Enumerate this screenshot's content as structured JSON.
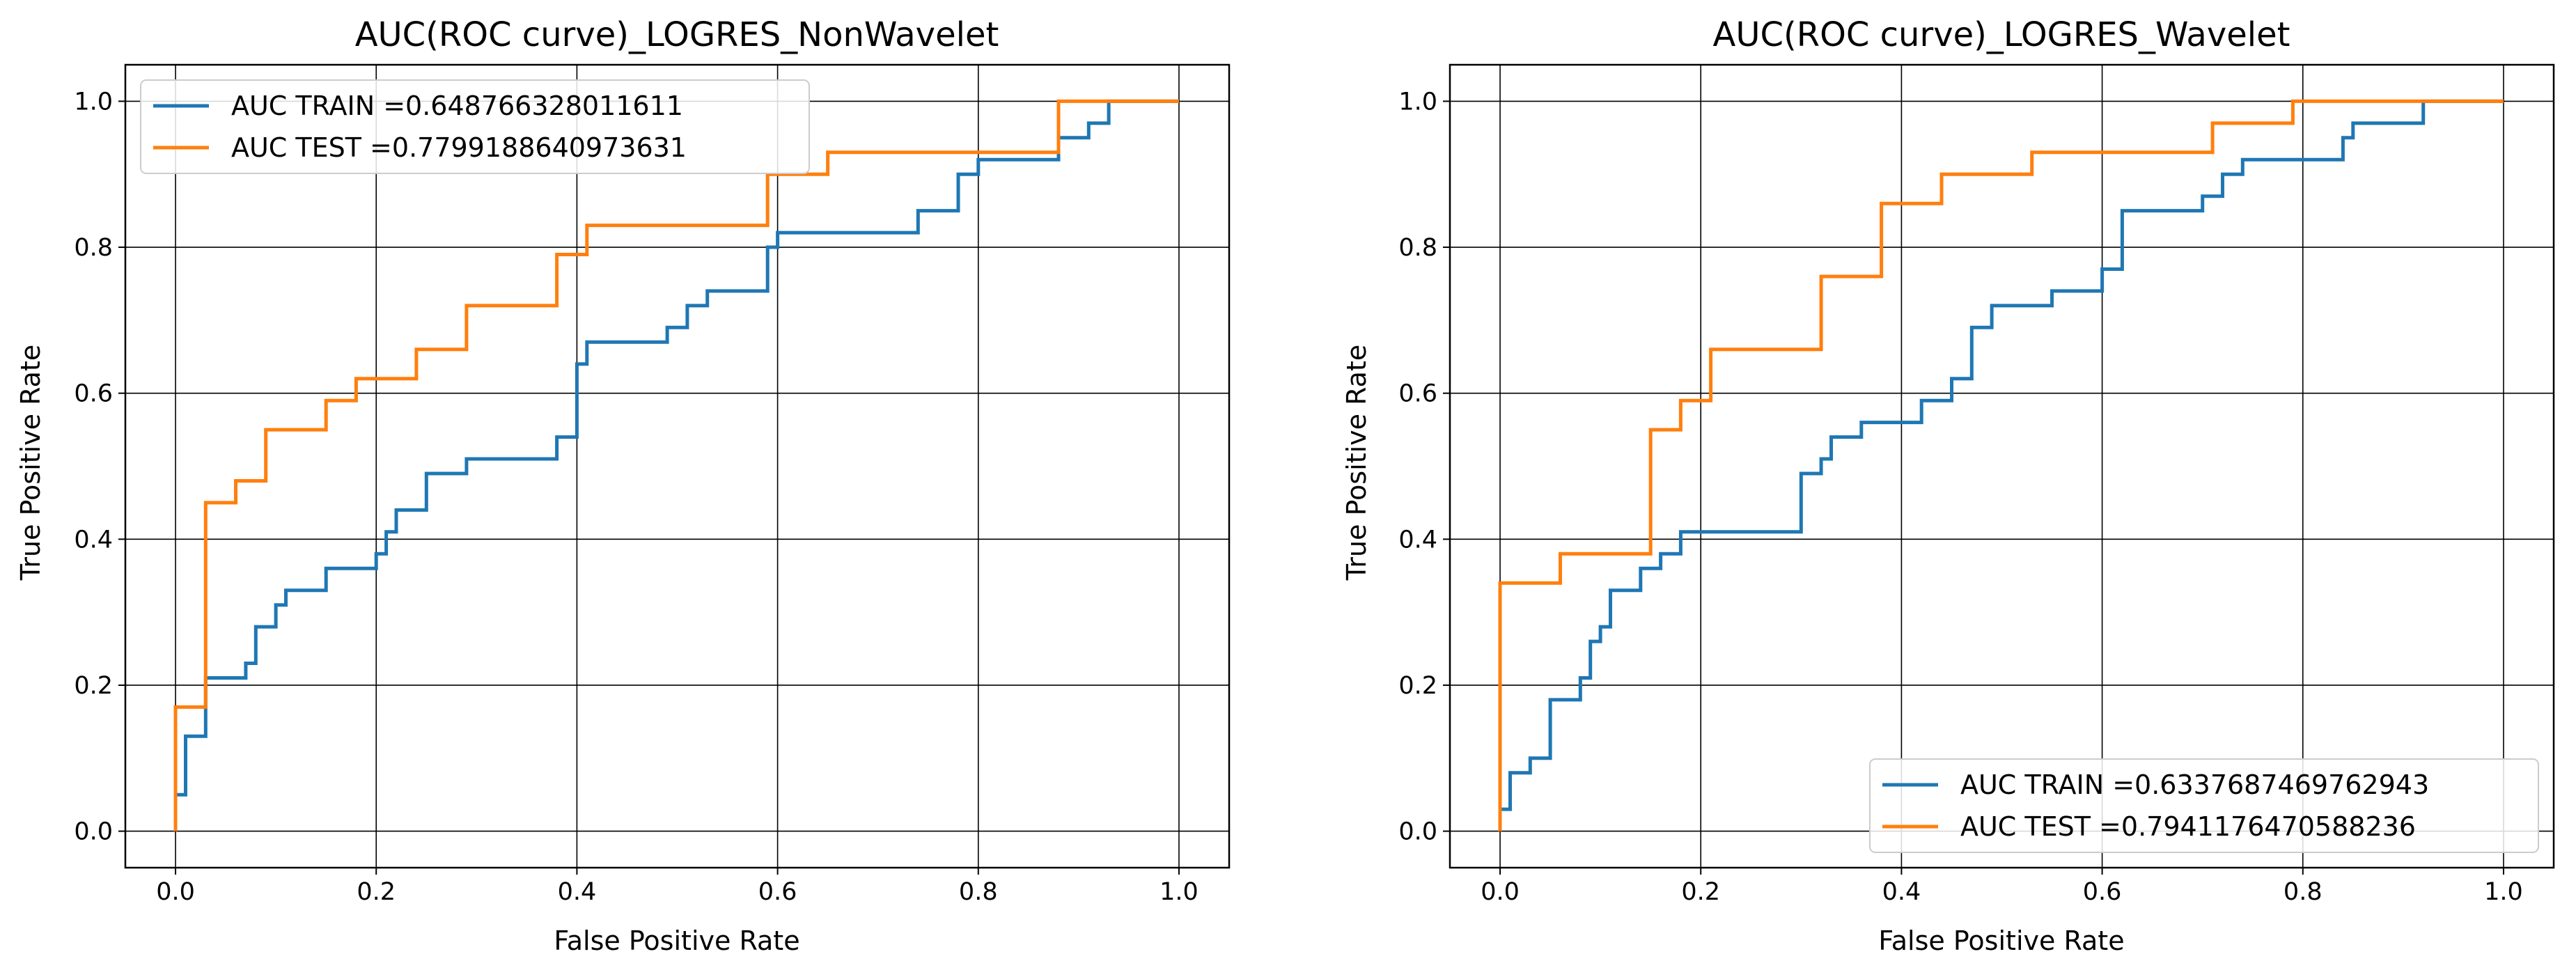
{
  "chart_data": [
    {
      "type": "line",
      "title": "AUC(ROC curve)_LOGRES_NonWavelet",
      "xlabel": "False Positive Rate",
      "ylabel": "True Positive Rate",
      "xlim": [
        -0.05,
        1.05
      ],
      "ylim": [
        -0.05,
        1.05
      ],
      "xticks": [
        "0.0",
        "0.2",
        "0.4",
        "0.6",
        "0.8",
        "1.0"
      ],
      "yticks": [
        "0.0",
        "0.2",
        "0.4",
        "0.6",
        "0.8",
        "1.0"
      ],
      "grid": true,
      "legend_position": "upper-left",
      "series": [
        {
          "name": "AUC TRAIN =0.648766328011611",
          "color": "#1f77b4",
          "x": [
            0.0,
            0.0,
            0.01,
            0.01,
            0.03,
            0.03,
            0.07,
            0.07,
            0.08,
            0.08,
            0.1,
            0.1,
            0.11,
            0.11,
            0.15,
            0.15,
            0.2,
            0.2,
            0.21,
            0.21,
            0.22,
            0.22,
            0.25,
            0.25,
            0.29,
            0.29,
            0.38,
            0.38,
            0.4,
            0.4,
            0.41,
            0.41,
            0.49,
            0.49,
            0.51,
            0.51,
            0.53,
            0.53,
            0.59,
            0.59,
            0.6,
            0.6,
            0.74,
            0.74,
            0.78,
            0.78,
            0.8,
            0.8,
            0.88,
            0.88,
            0.91,
            0.91,
            0.93,
            0.93,
            1.0
          ],
          "y": [
            0.0,
            0.05,
            0.05,
            0.13,
            0.13,
            0.21,
            0.21,
            0.23,
            0.23,
            0.28,
            0.28,
            0.31,
            0.31,
            0.33,
            0.33,
            0.36,
            0.36,
            0.38,
            0.38,
            0.41,
            0.41,
            0.44,
            0.44,
            0.49,
            0.49,
            0.51,
            0.51,
            0.54,
            0.54,
            0.64,
            0.64,
            0.67,
            0.67,
            0.69,
            0.69,
            0.72,
            0.72,
            0.74,
            0.74,
            0.8,
            0.8,
            0.82,
            0.82,
            0.85,
            0.85,
            0.9,
            0.9,
            0.92,
            0.92,
            0.95,
            0.95,
            0.97,
            0.97,
            1.0,
            1.0
          ]
        },
        {
          "name": "AUC TEST =0.7799188640973631",
          "color": "#ff7f0e",
          "x": [
            0.0,
            0.0,
            0.03,
            0.03,
            0.06,
            0.06,
            0.09,
            0.09,
            0.15,
            0.15,
            0.18,
            0.18,
            0.24,
            0.24,
            0.29,
            0.29,
            0.38,
            0.38,
            0.41,
            0.41,
            0.59,
            0.59,
            0.65,
            0.65,
            0.88,
            0.88,
            1.0
          ],
          "y": [
            0.0,
            0.17,
            0.17,
            0.45,
            0.45,
            0.48,
            0.48,
            0.55,
            0.55,
            0.59,
            0.59,
            0.62,
            0.62,
            0.66,
            0.66,
            0.72,
            0.72,
            0.79,
            0.79,
            0.83,
            0.83,
            0.9,
            0.9,
            0.93,
            0.93,
            1.0,
            1.0
          ]
        }
      ]
    },
    {
      "type": "line",
      "title": "AUC(ROC curve)_LOGRES_Wavelet",
      "xlabel": "False Positive Rate",
      "ylabel": "True Positive Rate",
      "xlim": [
        -0.05,
        1.05
      ],
      "ylim": [
        -0.05,
        1.05
      ],
      "xticks": [
        "0.0",
        "0.2",
        "0.4",
        "0.6",
        "0.8",
        "1.0"
      ],
      "yticks": [
        "0.0",
        "0.2",
        "0.4",
        "0.6",
        "0.8",
        "1.0"
      ],
      "grid": true,
      "legend_position": "lower-right",
      "series": [
        {
          "name": "AUC TRAIN =0.6337687469762943",
          "color": "#1f77b4",
          "x": [
            0.0,
            0.0,
            0.01,
            0.01,
            0.03,
            0.03,
            0.05,
            0.05,
            0.08,
            0.08,
            0.09,
            0.09,
            0.1,
            0.1,
            0.11,
            0.11,
            0.14,
            0.14,
            0.16,
            0.16,
            0.18,
            0.18,
            0.3,
            0.3,
            0.32,
            0.32,
            0.33,
            0.33,
            0.36,
            0.36,
            0.42,
            0.42,
            0.45,
            0.45,
            0.47,
            0.47,
            0.49,
            0.49,
            0.55,
            0.55,
            0.6,
            0.6,
            0.62,
            0.62,
            0.7,
            0.7,
            0.72,
            0.72,
            0.74,
            0.74,
            0.84,
            0.84,
            0.85,
            0.85,
            0.92,
            0.92,
            1.0
          ],
          "y": [
            0.0,
            0.03,
            0.03,
            0.08,
            0.08,
            0.1,
            0.1,
            0.18,
            0.18,
            0.21,
            0.21,
            0.26,
            0.26,
            0.28,
            0.28,
            0.33,
            0.33,
            0.36,
            0.36,
            0.38,
            0.38,
            0.41,
            0.41,
            0.49,
            0.49,
            0.51,
            0.51,
            0.54,
            0.54,
            0.56,
            0.56,
            0.59,
            0.59,
            0.62,
            0.62,
            0.69,
            0.69,
            0.72,
            0.72,
            0.74,
            0.74,
            0.77,
            0.77,
            0.85,
            0.85,
            0.87,
            0.87,
            0.9,
            0.9,
            0.92,
            0.92,
            0.95,
            0.95,
            0.97,
            0.97,
            1.0,
            1.0
          ]
        },
        {
          "name": "AUC TEST =0.7941176470588236",
          "color": "#ff7f0e",
          "x": [
            0.0,
            0.0,
            0.06,
            0.06,
            0.15,
            0.15,
            0.18,
            0.18,
            0.21,
            0.21,
            0.32,
            0.32,
            0.38,
            0.38,
            0.44,
            0.44,
            0.53,
            0.53,
            0.71,
            0.71,
            0.79,
            0.79,
            1.0
          ],
          "y": [
            0.0,
            0.34,
            0.34,
            0.38,
            0.38,
            0.55,
            0.55,
            0.59,
            0.59,
            0.66,
            0.66,
            0.76,
            0.76,
            0.86,
            0.86,
            0.9,
            0.9,
            0.93,
            0.93,
            0.97,
            0.97,
            1.0,
            1.0
          ]
        }
      ]
    }
  ]
}
